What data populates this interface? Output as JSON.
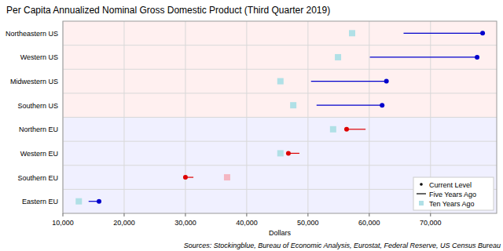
{
  "chart_data": {
    "type": "dumbbell",
    "title": "Per Capita Annualized Nominal Gross Domestic Product (Third Quarter 2019)",
    "x_label": "Dollars",
    "source": "Sources: Stockingblue, Bureau of Economic Analysis, Eurostat, Federal Reserve, US Census Bureau",
    "orientation": "horizontal",
    "grid": true,
    "legend": "bottom-right",
    "categories": [
      "Northeastern US",
      "Western US",
      "Midwestern US",
      "Southern US",
      "Northern EU",
      "Western EU",
      "Southern EU",
      "Eastern EU"
    ],
    "series": [
      {
        "name": "Current Level",
        "marker": "circle",
        "values": [
          78500,
          77600,
          62800,
          62100,
          56300,
          46800,
          30000,
          15900
        ],
        "colors": [
          "#0000cc",
          "#0000cc",
          "#0000cc",
          "#0000cc",
          "#dd0000",
          "#dd0000",
          "#dd0000",
          "#0000cc"
        ]
      },
      {
        "name": "Five Years Ago",
        "line_style": "solid",
        "values": [
          65600,
          60100,
          50500,
          51400,
          59400,
          48600,
          31300,
          14200
        ],
        "colors": [
          "#0000cc",
          "#0000cc",
          "#0000cc",
          "#0000cc",
          "#dd0000",
          "#dd0000",
          "#dd0000",
          "#0000cc"
        ]
      },
      {
        "name": "Ten Years Ago",
        "marker": "square",
        "values": [
          57200,
          54900,
          45500,
          47600,
          54100,
          45500,
          36800,
          12600
        ],
        "colors": [
          "#b0e0e6",
          "#b0e0e6",
          "#b0e0e6",
          "#b0e0e6",
          "#b0e0e6",
          "#b0e0e6",
          "#f4b6c2",
          "#b0e0e6"
        ]
      }
    ],
    "xlim": [
      10000,
      80800
    ],
    "xticks": [
      {
        "value": 10000,
        "label": "10,000"
      },
      {
        "value": 20000,
        "label": "20,000"
      },
      {
        "value": 30000,
        "label": "30,000"
      },
      {
        "value": 40000,
        "label": "40,000"
      },
      {
        "value": 50000,
        "label": "50,000"
      },
      {
        "value": 60000,
        "label": "60,000"
      },
      {
        "value": 70000,
        "label": "70,000"
      }
    ]
  }
}
